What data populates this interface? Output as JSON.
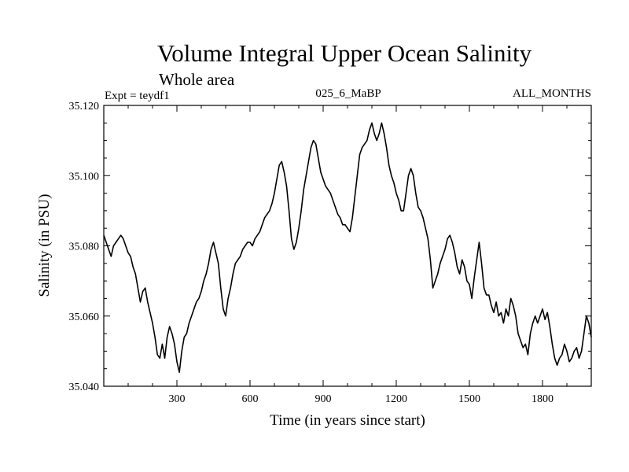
{
  "chart_data": {
    "type": "line",
    "title": "Volume Integral Upper Ocean Salinity",
    "subtitle": "Whole area",
    "annotations": {
      "left": "Expt = teydf1",
      "center": "025_6_MaBP",
      "right": "ALL_MONTHS"
    },
    "xlabel": "Time (in years since start)",
    "ylabel": "Salinity (in PSU)",
    "xlim": [
      0,
      2000
    ],
    "ylim": [
      35.04,
      35.12
    ],
    "x_ticks": [
      300,
      600,
      900,
      1200,
      1500,
      1800
    ],
    "x_tick_labels": [
      "300",
      "600",
      "900",
      "1200",
      "1500",
      "1800"
    ],
    "y_ticks": [
      35.04,
      35.06,
      35.08,
      35.1,
      35.12
    ],
    "y_tick_labels": [
      "35.040",
      "35.060",
      "35.080",
      "35.100",
      "35.120"
    ],
    "grid": false,
    "series": [
      {
        "name": "Salinity",
        "x": [
          0,
          10,
          20,
          30,
          40,
          50,
          60,
          70,
          80,
          90,
          100,
          110,
          120,
          130,
          140,
          150,
          160,
          170,
          180,
          190,
          200,
          210,
          220,
          230,
          240,
          250,
          260,
          270,
          280,
          290,
          300,
          310,
          320,
          330,
          340,
          350,
          360,
          370,
          380,
          390,
          400,
          410,
          420,
          430,
          440,
          450,
          460,
          470,
          480,
          490,
          500,
          510,
          520,
          530,
          540,
          550,
          560,
          570,
          580,
          590,
          600,
          610,
          620,
          630,
          640,
          650,
          660,
          670,
          680,
          690,
          700,
          710,
          720,
          730,
          740,
          750,
          760,
          770,
          780,
          790,
          800,
          810,
          820,
          830,
          840,
          850,
          860,
          870,
          880,
          890,
          900,
          910,
          920,
          930,
          940,
          950,
          960,
          970,
          980,
          990,
          1000,
          1010,
          1020,
          1030,
          1040,
          1050,
          1060,
          1070,
          1080,
          1090,
          1100,
          1110,
          1120,
          1130,
          1140,
          1150,
          1160,
          1170,
          1180,
          1190,
          1200,
          1210,
          1220,
          1230,
          1240,
          1250,
          1260,
          1270,
          1280,
          1290,
          1300,
          1310,
          1320,
          1330,
          1340,
          1350,
          1360,
          1370,
          1380,
          1390,
          1400,
          1410,
          1420,
          1430,
          1440,
          1450,
          1460,
          1470,
          1480,
          1490,
          1500,
          1510,
          1520,
          1530,
          1540,
          1550,
          1560,
          1570,
          1580,
          1590,
          1600,
          1610,
          1620,
          1630,
          1640,
          1650,
          1660,
          1670,
          1680,
          1690,
          1700,
          1710,
          1720,
          1730,
          1740,
          1750,
          1760,
          1770,
          1780,
          1790,
          1800,
          1810,
          1820,
          1830,
          1840,
          1850,
          1860,
          1870,
          1880,
          1890,
          1900,
          1910,
          1920,
          1930,
          1940,
          1950,
          1960,
          1970,
          1980,
          1990,
          2000
        ],
        "values": [
          35.083,
          35.081,
          35.079,
          35.077,
          35.08,
          35.081,
          35.082,
          35.083,
          35.082,
          35.08,
          35.078,
          35.077,
          35.074,
          35.072,
          35.068,
          35.064,
          35.067,
          35.068,
          35.064,
          35.061,
          35.058,
          35.054,
          35.049,
          35.048,
          35.052,
          35.048,
          35.054,
          35.057,
          35.055,
          35.052,
          35.047,
          35.044,
          35.05,
          35.054,
          35.055,
          35.058,
          35.06,
          35.062,
          35.064,
          35.065,
          35.067,
          35.07,
          35.072,
          35.075,
          35.079,
          35.081,
          35.078,
          35.075,
          35.068,
          35.062,
          35.06,
          35.065,
          35.068,
          35.072,
          35.075,
          35.076,
          35.077,
          35.079,
          35.08,
          35.081,
          35.081,
          35.08,
          35.082,
          35.083,
          35.084,
          35.086,
          35.088,
          35.089,
          35.09,
          35.092,
          35.095,
          35.099,
          35.103,
          35.104,
          35.101,
          35.097,
          35.09,
          35.082,
          35.079,
          35.081,
          35.085,
          35.09,
          35.096,
          35.1,
          35.104,
          35.108,
          35.11,
          35.109,
          35.105,
          35.101,
          35.099,
          35.097,
          35.096,
          35.095,
          35.093,
          35.091,
          35.089,
          35.088,
          35.086,
          35.086,
          35.085,
          35.084,
          35.088,
          35.094,
          35.1,
          35.106,
          35.108,
          35.109,
          35.11,
          35.113,
          35.115,
          35.112,
          35.11,
          35.112,
          35.115,
          35.112,
          35.108,
          35.103,
          35.1,
          35.098,
          35.095,
          35.093,
          35.09,
          35.09,
          35.095,
          35.1,
          35.102,
          35.1,
          35.095,
          35.091,
          35.09,
          35.088,
          35.085,
          35.082,
          35.076,
          35.068,
          35.07,
          35.072,
          35.075,
          35.077,
          35.079,
          35.082,
          35.083,
          35.081,
          35.078,
          35.074,
          35.072,
          35.076,
          35.074,
          35.07,
          35.069,
          35.065,
          35.071,
          35.076,
          35.081,
          35.075,
          35.068,
          35.066,
          35.066,
          35.063,
          35.061,
          35.064,
          35.06,
          35.061,
          35.058,
          35.062,
          35.06,
          35.065,
          35.063,
          35.06,
          35.055,
          35.053,
          35.051,
          35.052,
          35.049,
          35.055,
          35.058,
          35.06,
          35.058,
          35.06,
          35.062,
          35.059,
          35.061,
          35.057,
          35.052,
          35.048,
          35.046,
          35.048,
          35.049,
          35.052,
          35.05,
          35.047,
          35.048,
          35.05,
          35.051,
          35.048,
          35.05,
          35.055,
          35.06,
          35.058,
          35.054
        ]
      }
    ]
  }
}
